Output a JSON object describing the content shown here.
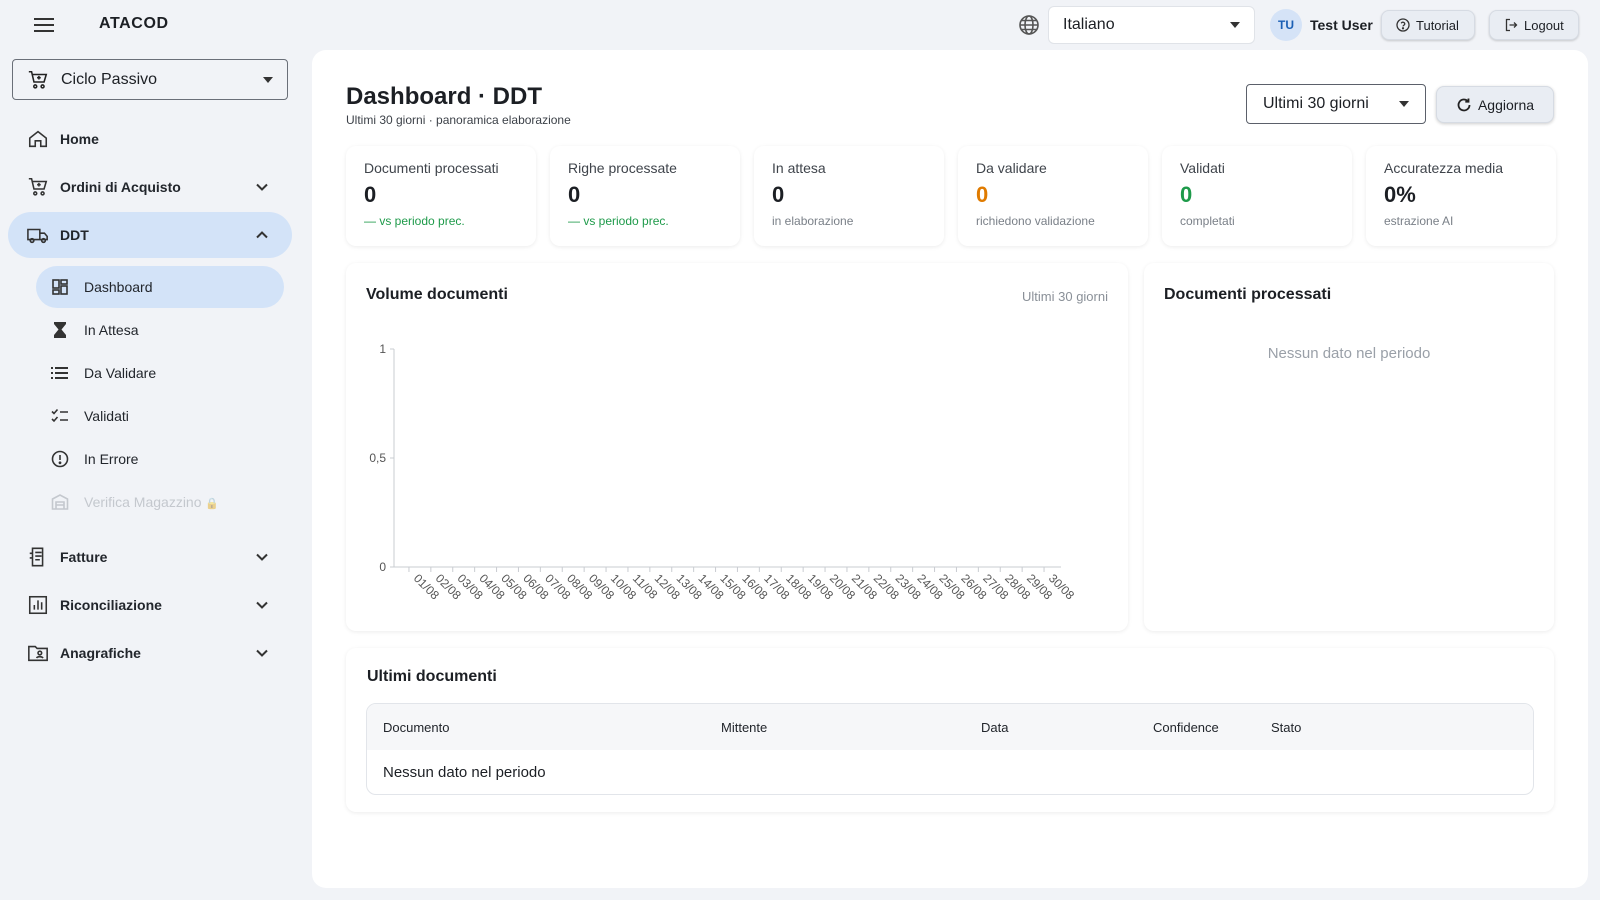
{
  "app": {
    "brand": "ATACOD"
  },
  "header": {
    "language": "Italiano",
    "user_initials": "TU",
    "user_name": "Test User",
    "tutorial_label": "Tutorial",
    "logout_label": "Logout"
  },
  "sidebar": {
    "cycle": "Ciclo Passivo",
    "items": [
      {
        "label": "Home",
        "icon": "home-icon"
      },
      {
        "label": "Ordini di Acquisto",
        "icon": "cart-icon",
        "expandable": true,
        "expanded": false
      },
      {
        "label": "DDT",
        "icon": "truck-icon",
        "expandable": true,
        "expanded": true,
        "active": true
      },
      {
        "label": "Fatture",
        "icon": "receipt-icon",
        "expandable": true,
        "expanded": false
      },
      {
        "label": "Riconciliazione",
        "icon": "chart-box-icon",
        "expandable": true,
        "expanded": false
      },
      {
        "label": "Anagrafiche",
        "icon": "folder-user-icon",
        "expandable": true,
        "expanded": false
      }
    ],
    "ddt_sub": [
      {
        "label": "Dashboard",
        "icon": "dashboard-icon",
        "active": true
      },
      {
        "label": "In Attesa",
        "icon": "hourglass-icon"
      },
      {
        "label": "Da Validare",
        "icon": "list-icon"
      },
      {
        "label": "Validati",
        "icon": "checklist-icon"
      },
      {
        "label": "In Errore",
        "icon": "alert-circle-icon"
      },
      {
        "label": "Verifica Magazzino",
        "icon": "warehouse-icon",
        "disabled": true,
        "lock": "🔒"
      }
    ]
  },
  "page": {
    "title": "Dashboard · DDT",
    "subtitle": "Ultimi 30 giorni · panoramica elaborazione",
    "period": "Ultimi 30 giorni",
    "refresh_label": "Aggiorna"
  },
  "kpis": [
    {
      "label": "Documenti processati",
      "value": "0",
      "note": "— vs periodo prec.",
      "note_color": "#1e9a4a",
      "value_color": "#1c1f24"
    },
    {
      "label": "Righe processate",
      "value": "0",
      "note": "— vs periodo prec.",
      "note_color": "#1e9a4a",
      "value_color": "#1c1f24"
    },
    {
      "label": "In attesa",
      "value": "0",
      "note": "in elaborazione",
      "note_color": "#7a8088",
      "value_color": "#1c1f24"
    },
    {
      "label": "Da validare",
      "value": "0",
      "note": "richiedono validazione",
      "note_color": "#7a8088",
      "value_color": "#e07b00"
    },
    {
      "label": "Validati",
      "value": "0",
      "note": "completati",
      "note_color": "#7a8088",
      "value_color": "#1e9a4a"
    },
    {
      "label": "Accuratezza media",
      "value": "0%",
      "note": "estrazione AI",
      "note_color": "#7a8088",
      "value_color": "#1c1f24"
    }
  ],
  "volume": {
    "title": "Volume documenti",
    "range": "Ultimi 30 giorni"
  },
  "processed": {
    "title": "Documenti processati",
    "empty": "Nessun dato nel periodo"
  },
  "recent": {
    "title": "Ultimi documenti",
    "columns": [
      "Documento",
      "Mittente",
      "Data",
      "Confidence",
      "Stato"
    ],
    "empty": "Nessun dato nel periodo"
  },
  "chart_data": {
    "type": "line",
    "x": [
      "01/08",
      "02/08",
      "03/08",
      "04/08",
      "05/08",
      "06/08",
      "07/08",
      "08/08",
      "09/08",
      "10/08",
      "11/08",
      "12/08",
      "13/08",
      "14/08",
      "15/08",
      "16/08",
      "17/08",
      "18/08",
      "19/08",
      "20/08",
      "21/08",
      "22/08",
      "23/08",
      "24/08",
      "25/08",
      "26/08",
      "27/08",
      "28/08",
      "29/08",
      "30/08"
    ],
    "values": [
      0,
      0,
      0,
      0,
      0,
      0,
      0,
      0,
      0,
      0,
      0,
      0,
      0,
      0,
      0,
      0,
      0,
      0,
      0,
      0,
      0,
      0,
      0,
      0,
      0,
      0,
      0,
      0,
      0,
      0
    ],
    "y_ticks": [
      "0",
      "0,5",
      "1"
    ],
    "ylim": [
      0,
      1
    ],
    "grid": false,
    "xlabel": "",
    "ylabel": ""
  }
}
